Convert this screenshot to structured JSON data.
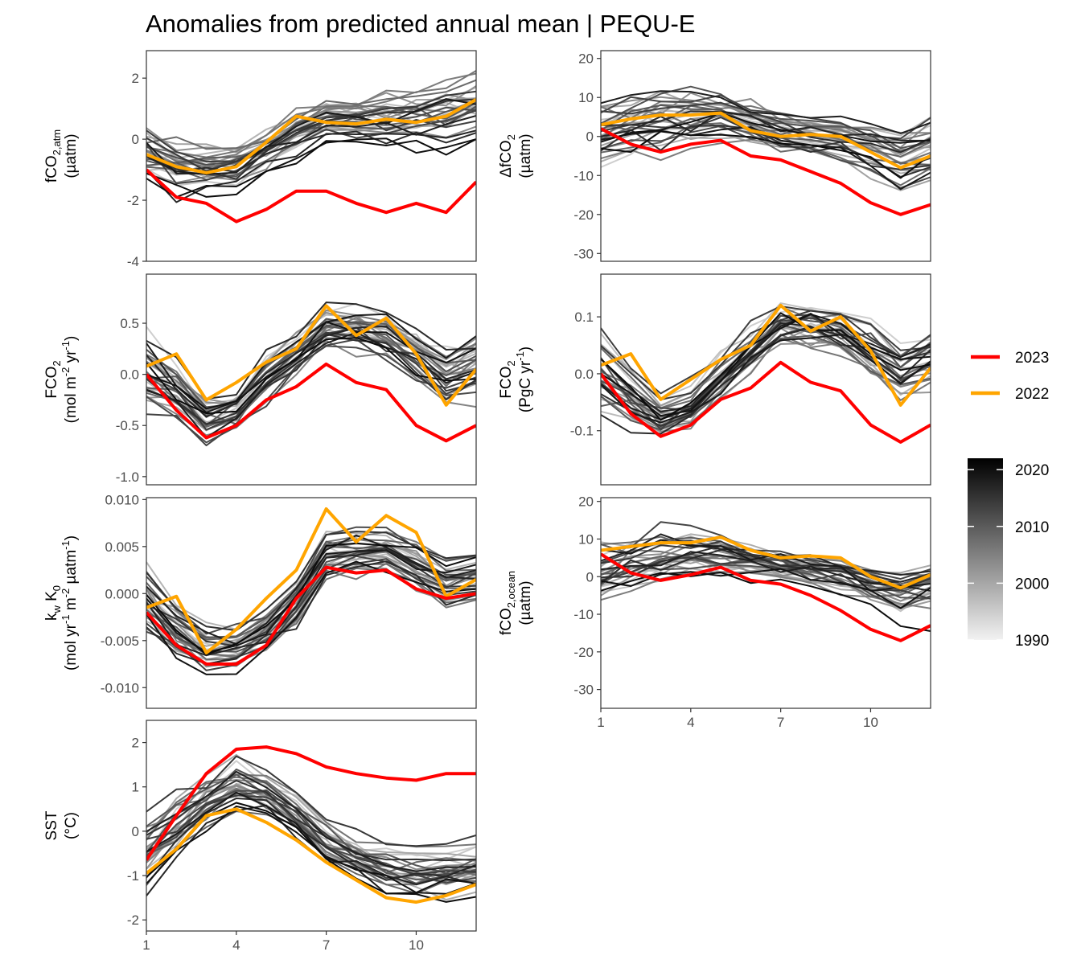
{
  "title": "Anomalies from predicted annual mean | PEQU-E",
  "legend": {
    "lines": [
      {
        "label": "2023",
        "color": "#ff0000"
      },
      {
        "label": "2022",
        "color": "#ffa500"
      }
    ],
    "colorbar": {
      "min": 1990,
      "max": 2022,
      "ticks": [
        "2020",
        "2010",
        "2000",
        "1990"
      ],
      "low_color": "#f2f2f2",
      "high_color": "#000000"
    }
  },
  "chart_data": [
    {
      "id": "fco2atm",
      "type": "line",
      "ylabel_lines": [
        [
          "fCO",
          [
            "2,atm",
            "sub"
          ]
        ],
        [
          "(µatm)"
        ]
      ],
      "xlim": [
        1,
        12
      ],
      "ylim": [
        -4,
        2.9
      ],
      "yticks": [
        2,
        0,
        -2,
        -4
      ],
      "ytick_labels": [
        "2",
        "0",
        "-2",
        "-4"
      ],
      "xticks": [],
      "x": [
        1,
        2,
        3,
        4,
        5,
        6,
        7,
        8,
        9,
        10,
        11,
        12
      ],
      "highlight": [
        {
          "name": "2023",
          "color": "#ff0000",
          "values": [
            -1.0,
            -1.9,
            -2.1,
            -2.7,
            -2.3,
            -1.7,
            -1.7,
            -2.1,
            -2.4,
            -2.1,
            -2.4,
            -1.4
          ]
        },
        {
          "name": "2022",
          "color": "#ffa500",
          "values": [
            -0.5,
            -0.9,
            -1.1,
            -0.9,
            -0.1,
            0.75,
            0.55,
            0.5,
            0.65,
            0.55,
            0.75,
            1.3
          ]
        }
      ],
      "background": {
        "color_range": [
          1990,
          2021
        ],
        "center": [
          -0.5,
          -0.9,
          -1.0,
          -0.9,
          -0.4,
          0.3,
          0.6,
          0.6,
          0.7,
          0.7,
          0.8,
          1.0
        ],
        "spread": [
          1.0,
          1.0,
          0.9,
          0.8,
          0.8,
          0.8,
          0.8,
          0.8,
          0.9,
          0.9,
          1.0,
          1.1
        ]
      }
    },
    {
      "id": "dfco2",
      "type": "line",
      "ylabel_lines": [
        [
          "ΔfCO",
          [
            "2",
            "sub"
          ]
        ],
        [
          "(µatm)"
        ]
      ],
      "xlim": [
        1,
        12
      ],
      "ylim": [
        -32,
        22
      ],
      "yticks": [
        20,
        10,
        0,
        -10,
        -20,
        -30
      ],
      "ytick_labels": [
        "20",
        "10",
        "0",
        "-10",
        "-20",
        "-30"
      ],
      "xticks": [],
      "x": [
        1,
        2,
        3,
        4,
        5,
        6,
        7,
        8,
        9,
        10,
        11,
        12
      ],
      "highlight": [
        {
          "name": "2023",
          "color": "#ff0000",
          "values": [
            2,
            -2,
            -4,
            -2,
            -1,
            -5,
            -6,
            -9,
            -12,
            -17,
            -20,
            -17.5
          ]
        },
        {
          "name": "2022",
          "color": "#ffa500",
          "values": [
            3,
            4.5,
            5.5,
            5.5,
            6,
            1.5,
            0,
            0.5,
            0,
            -4,
            -8,
            -5
          ]
        }
      ],
      "background": {
        "color_range": [
          1990,
          2021
        ],
        "center": [
          1,
          3,
          4,
          5,
          5,
          3,
          1,
          0,
          -1,
          -3,
          -6,
          -4
        ],
        "spread": [
          8,
          8,
          8,
          7,
          6,
          5,
          5,
          5,
          5,
          6,
          7,
          7
        ]
      }
    },
    {
      "id": "fco2flux",
      "type": "line",
      "ylabel_lines": [
        [
          "FCO",
          [
            "2",
            "sub"
          ]
        ],
        [
          "(mol m",
          [
            "-2",
            "sup"
          ],
          " yr",
          [
            "-1",
            "sup"
          ],
          ")"
        ]
      ],
      "xlim": [
        1,
        12
      ],
      "ylim": [
        -1.08,
        0.98
      ],
      "yticks": [
        0.5,
        0.0,
        -0.5,
        -1.0
      ],
      "ytick_labels": [
        "0.5",
        "0.0",
        "-0.5",
        "-1.0"
      ],
      "xticks": [],
      "x": [
        1,
        2,
        3,
        4,
        5,
        6,
        7,
        8,
        9,
        10,
        11,
        12
      ],
      "highlight": [
        {
          "name": "2023",
          "color": "#ff0000",
          "values": [
            0.0,
            -0.35,
            -0.62,
            -0.5,
            -0.25,
            -0.12,
            0.1,
            -0.08,
            -0.15,
            -0.5,
            -0.65,
            -0.5
          ]
        },
        {
          "name": "2022",
          "color": "#ffa500",
          "values": [
            0.08,
            0.2,
            -0.25,
            -0.08,
            0.12,
            0.25,
            0.67,
            0.38,
            0.55,
            0.2,
            -0.3,
            0.05
          ]
        }
      ],
      "background": {
        "color_range": [
          1990,
          2021
        ],
        "center": [
          -0.05,
          -0.2,
          -0.45,
          -0.35,
          -0.05,
          0.2,
          0.45,
          0.45,
          0.4,
          0.2,
          0.0,
          0.1
        ],
        "spread": [
          0.4,
          0.3,
          0.25,
          0.25,
          0.25,
          0.25,
          0.25,
          0.25,
          0.25,
          0.3,
          0.3,
          0.3
        ]
      }
    },
    {
      "id": "fco2pg",
      "type": "line",
      "ylabel_lines": [
        [
          "FCO",
          [
            "2",
            "sub"
          ]
        ],
        [
          "(PgC yr",
          [
            "-1",
            "sup"
          ],
          ")"
        ]
      ],
      "xlim": [
        1,
        12
      ],
      "ylim": [
        -0.195,
        0.175
      ],
      "yticks": [
        0.1,
        0.0,
        -0.1
      ],
      "ytick_labels": [
        "0.1",
        "0.0",
        "-0.1"
      ],
      "xticks": [],
      "x": [
        1,
        2,
        3,
        4,
        5,
        6,
        7,
        8,
        9,
        10,
        11,
        12
      ],
      "highlight": [
        {
          "name": "2023",
          "color": "#ff0000",
          "values": [
            0.0,
            -0.07,
            -0.11,
            -0.09,
            -0.045,
            -0.025,
            0.02,
            -0.015,
            -0.03,
            -0.09,
            -0.12,
            -0.09
          ]
        },
        {
          "name": "2022",
          "color": "#ffa500",
          "values": [
            0.015,
            0.035,
            -0.045,
            -0.01,
            0.025,
            0.05,
            0.12,
            0.075,
            0.1,
            0.04,
            -0.055,
            0.01
          ]
        }
      ],
      "background": {
        "color_range": [
          1990,
          2021
        ],
        "center": [
          -0.01,
          -0.04,
          -0.08,
          -0.06,
          -0.01,
          0.04,
          0.08,
          0.08,
          0.07,
          0.04,
          0.0,
          0.02
        ],
        "spread": [
          0.07,
          0.055,
          0.045,
          0.045,
          0.045,
          0.045,
          0.045,
          0.045,
          0.045,
          0.055,
          0.055,
          0.055
        ]
      }
    },
    {
      "id": "kwk0",
      "type": "line",
      "ylabel_lines": [
        [
          "k",
          [
            "w",
            "sub"
          ],
          " K",
          [
            "0",
            "sub"
          ]
        ],
        [
          "(mol yr",
          [
            "-1",
            "sup"
          ],
          " m",
          [
            "-2",
            "sup"
          ],
          " µatm",
          [
            "-1",
            "sup"
          ],
          ")"
        ]
      ],
      "xlim": [
        1,
        12
      ],
      "ylim": [
        -0.0122,
        0.0102
      ],
      "yticks": [
        0.01,
        0.005,
        0.0,
        -0.005,
        -0.01
      ],
      "ytick_labels": [
        "0.010",
        "0.005",
        "0.000",
        "-0.005",
        "-0.010"
      ],
      "xticks": [],
      "x": [
        1,
        2,
        3,
        4,
        5,
        6,
        7,
        8,
        9,
        10,
        11,
        12
      ],
      "highlight": [
        {
          "name": "2023",
          "color": "#ff0000",
          "values": [
            -0.002,
            -0.0055,
            -0.0075,
            -0.0075,
            -0.0055,
            -0.0005,
            0.0028,
            0.0022,
            0.0025,
            0.0005,
            -0.0005,
            0.0
          ]
        },
        {
          "name": "2022",
          "color": "#ffa500",
          "values": [
            -0.0015,
            -0.0003,
            -0.0063,
            -0.0038,
            -0.0005,
            0.0025,
            0.009,
            0.0055,
            0.0083,
            0.0065,
            -0.0003,
            0.0015
          ]
        }
      ],
      "background": {
        "color_range": [
          1990,
          2021
        ],
        "center": [
          -0.001,
          -0.004,
          -0.006,
          -0.006,
          -0.004,
          -0.001,
          0.004,
          0.0045,
          0.0045,
          0.003,
          0.001,
          0.002
        ],
        "spread": [
          0.004,
          0.003,
          0.0025,
          0.0025,
          0.0025,
          0.0025,
          0.0025,
          0.0025,
          0.0025,
          0.0025,
          0.0025,
          0.0025
        ]
      }
    },
    {
      "id": "fco2ocean",
      "type": "line",
      "ylabel_lines": [
        [
          "fCO",
          [
            "2,ocean",
            "sub"
          ]
        ],
        [
          "(µatm)"
        ]
      ],
      "xlim": [
        1,
        12
      ],
      "ylim": [
        -35,
        21
      ],
      "yticks": [
        20,
        10,
        0,
        -10,
        -20,
        -30
      ],
      "ytick_labels": [
        "20",
        "10",
        "0",
        "-10",
        "-20",
        "-30"
      ],
      "xticks": [
        1,
        4,
        7,
        10
      ],
      "xtick_labels": [
        "1",
        "4",
        "7",
        "10"
      ],
      "x": [
        1,
        2,
        3,
        4,
        5,
        6,
        7,
        8,
        9,
        10,
        11,
        12
      ],
      "highlight": [
        {
          "name": "2023",
          "color": "#ff0000",
          "values": [
            6,
            1,
            -1,
            0.5,
            2.5,
            -1,
            -2,
            -5,
            -9,
            -14,
            -17,
            -13
          ]
        },
        {
          "name": "2022",
          "color": "#ffa500",
          "values": [
            7,
            8,
            9,
            9,
            10.5,
            7,
            5,
            5.5,
            5,
            0,
            -3,
            0.5
          ]
        }
      ],
      "background": {
        "color_range": [
          1990,
          2021
        ],
        "center": [
          1,
          3.5,
          5,
          6,
          5.5,
          4,
          3,
          2,
          1,
          -2,
          -4,
          -2
        ],
        "spread": [
          8,
          8,
          8,
          7,
          6,
          5,
          5,
          5,
          5,
          6,
          7,
          7
        ]
      }
    },
    {
      "id": "sst",
      "type": "line",
      "ylabel_lines": [
        [
          "SST"
        ],
        [
          "(°C)"
        ]
      ],
      "xlim": [
        1,
        12
      ],
      "ylim": [
        -2.25,
        2.5
      ],
      "yticks": [
        2,
        1,
        0,
        -1,
        -2
      ],
      "ytick_labels": [
        "2",
        "1",
        "0",
        "-1",
        "-2"
      ],
      "xticks": [
        1,
        4,
        7,
        10
      ],
      "xtick_labels": [
        "1",
        "4",
        "7",
        "10"
      ],
      "x": [
        1,
        2,
        3,
        4,
        5,
        6,
        7,
        8,
        9,
        10,
        11,
        12
      ],
      "highlight": [
        {
          "name": "2023",
          "color": "#ff0000",
          "values": [
            -0.65,
            0.35,
            1.3,
            1.85,
            1.9,
            1.75,
            1.45,
            1.3,
            1.2,
            1.15,
            1.3,
            1.3
          ]
        },
        {
          "name": "2022",
          "color": "#ffa500",
          "values": [
            -0.95,
            -0.4,
            0.35,
            0.5,
            0.2,
            -0.2,
            -0.7,
            -1.1,
            -1.5,
            -1.6,
            -1.45,
            -1.2
          ]
        }
      ],
      "background": {
        "color_range": [
          1990,
          2021
        ],
        "center": [
          -0.6,
          0.0,
          0.6,
          1.0,
          0.8,
          0.3,
          -0.3,
          -0.7,
          -0.9,
          -1.0,
          -1.0,
          -0.9
        ],
        "spread": [
          0.9,
          0.8,
          0.7,
          0.6,
          0.6,
          0.6,
          0.6,
          0.6,
          0.6,
          0.6,
          0.6,
          0.6
        ]
      }
    }
  ]
}
